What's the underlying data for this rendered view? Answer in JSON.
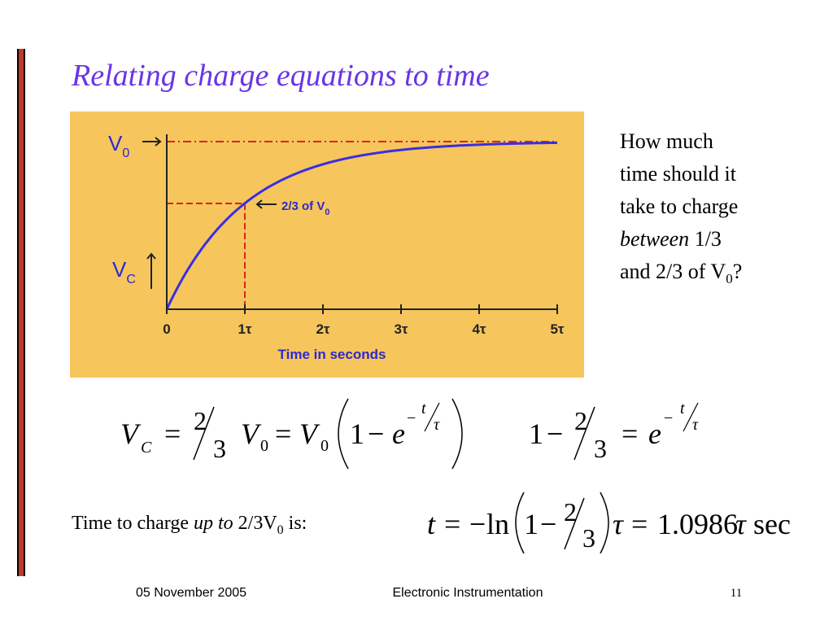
{
  "title": "Relating charge equations to time",
  "figure": {
    "v0_label": "V",
    "v0_sub": "0",
    "vc_label": "V",
    "vc_sub": "C",
    "annotation": "2/3 of V",
    "annotation_sub": "0",
    "x_ticks": [
      "0",
      "1τ",
      "2τ",
      "3τ",
      "4τ",
      "5τ"
    ],
    "x_label": "Time in seconds"
  },
  "question": {
    "lines": [
      "How much",
      "time should it",
      "take to charge"
    ],
    "emphasis": "between",
    "rest": " 1/3",
    "last": "and 2/3 of V",
    "last_sub": "0",
    "end": "?"
  },
  "equation_1": {
    "tokens": [
      "V",
      "C",
      "=",
      "2",
      "3",
      "V",
      "0",
      "=",
      "V",
      "0",
      "1",
      "−",
      "e",
      "−",
      "t",
      "τ"
    ]
  },
  "equation_2": {
    "tokens": [
      "1",
      "−",
      "2",
      "3",
      "=",
      "e",
      "−",
      "t",
      "τ"
    ]
  },
  "statement": {
    "text": "Time to charge ",
    "emphasis": "up to",
    "value": " 2/3V",
    "value_sub": "0",
    "end": " is:"
  },
  "equation_3": {
    "tokens": [
      "t",
      "=",
      "−",
      "ln",
      "1",
      "−",
      "2",
      "3",
      "τ",
      "=",
      "1.0986",
      "τ",
      "sec"
    ]
  },
  "footer": {
    "date": "05 November 2005",
    "course": "Electronic Instrumentation",
    "page": "11"
  }
}
